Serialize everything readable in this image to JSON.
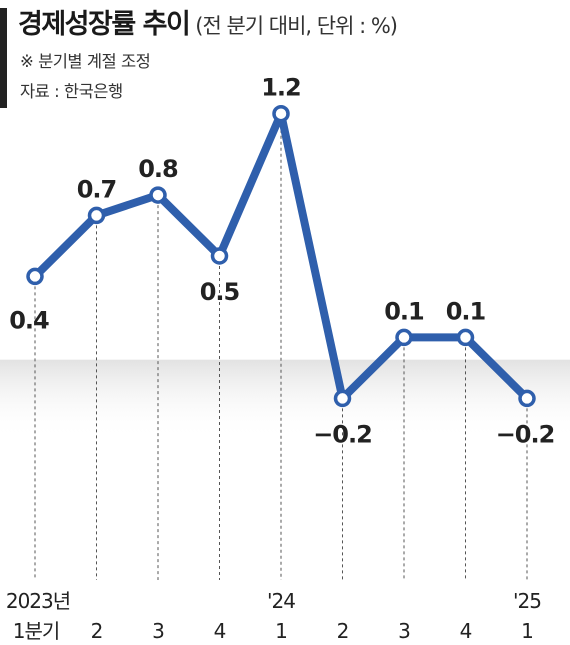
{
  "header": {
    "title": "경제성장률 추이",
    "subtitle": "(전 분기 대비, 단위 : %)",
    "note": "※ 분기별 계절 조정",
    "source": "자료 : 한국은행"
  },
  "chart_data": {
    "type": "line",
    "title": "경제성장률 추이",
    "subtitle": "(전 분기 대비, 단위 : %)",
    "xlabel": "",
    "ylabel": "",
    "unit": "%",
    "categories": [
      "2023년 1분기",
      "2",
      "3",
      "4",
      "'24 1",
      "2",
      "3",
      "4",
      "'25 1"
    ],
    "tick_year_labels": [
      "2023년",
      "",
      "",
      "",
      "'24",
      "",
      "",
      "",
      "'25"
    ],
    "tick_quarter_labels": [
      "1분기",
      "2",
      "3",
      "4",
      "1",
      "2",
      "3",
      "4",
      "1"
    ],
    "series": [
      {
        "values": [
          0.4,
          0.7,
          0.8,
          0.5,
          1.2,
          -0.2,
          0.1,
          0.1,
          -0.2
        ],
        "value_labels": [
          "0.4",
          "0.7",
          "0.8",
          "0.5",
          "1.2",
          "−0.2",
          "0.1",
          "0.1",
          "−0.2"
        ]
      }
    ],
    "ylim": [
      -0.3,
      1.3
    ],
    "grid": false,
    "legend": "none",
    "negative_region_shaded": true,
    "colors": {
      "line": "#2f5fac",
      "marker_fill": "#ffffff",
      "text": "#222222",
      "guide": "#555555",
      "negative_band": "#e8e8e8"
    }
  }
}
